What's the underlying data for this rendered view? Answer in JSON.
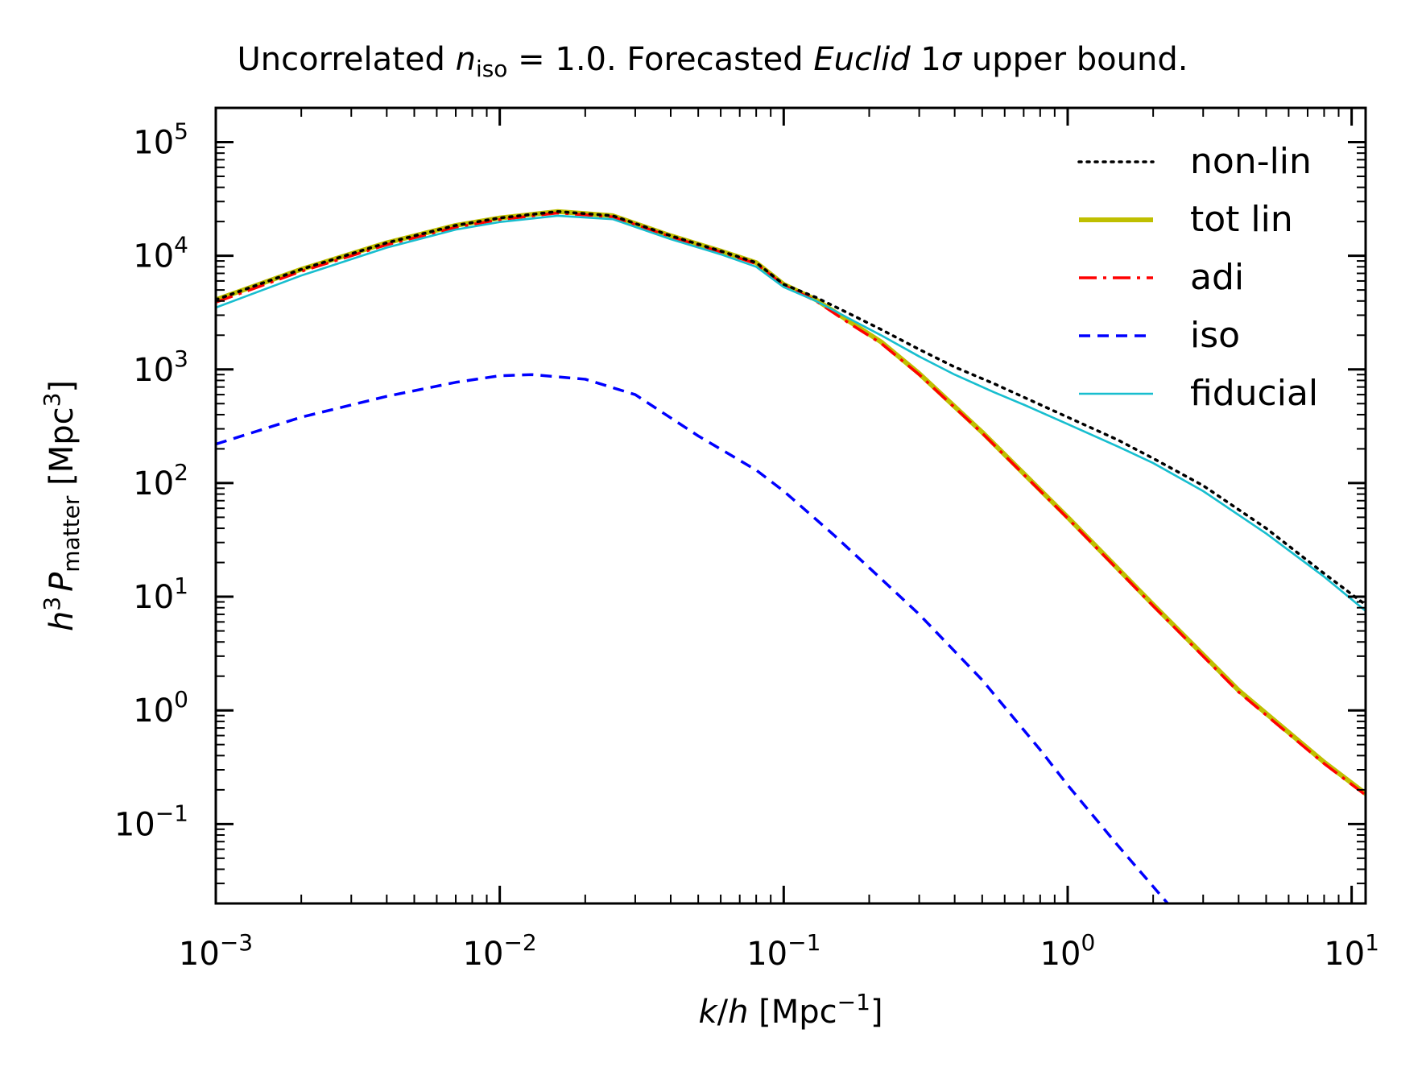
{
  "chart_data": {
    "type": "line",
    "title": {
      "pre": "Uncorrelated ",
      "var": "n",
      "sub": "iso",
      "mid": " = 1.0. Forecasted ",
      "italic": "Euclid",
      "post1": " 1",
      "sigma": "σ",
      "post2": " upper bound."
    },
    "xlabel": {
      "k": "k",
      "slash": "/",
      "h": "h",
      "unit": " [Mpc",
      "exp": "−1",
      "close": "]"
    },
    "ylabel": {
      "h": "h",
      "hexp": "3",
      "P": "P",
      "sub": "matter",
      "unit": " [Mpc",
      "exp": "3",
      "close": "]"
    },
    "xscale": "log",
    "yscale": "log",
    "xlim": [
      0.001,
      11.2
    ],
    "ylim": [
      0.02,
      200000
    ],
    "xticks": [
      {
        "value": 0.001,
        "base": "10",
        "exp": "−3"
      },
      {
        "value": 0.01,
        "base": "10",
        "exp": "−2"
      },
      {
        "value": 0.1,
        "base": "10",
        "exp": "−1"
      },
      {
        "value": 1,
        "base": "10",
        "exp": "0"
      },
      {
        "value": 10,
        "base": "10",
        "exp": "1"
      }
    ],
    "yticks": [
      {
        "value": 0.1,
        "base": "10",
        "exp": "−1"
      },
      {
        "value": 1,
        "base": "10",
        "exp": "0"
      },
      {
        "value": 10,
        "base": "10",
        "exp": "1"
      },
      {
        "value": 100,
        "base": "10",
        "exp": "2"
      },
      {
        "value": 1000,
        "base": "10",
        "exp": "3"
      },
      {
        "value": 10000,
        "base": "10",
        "exp": "4"
      },
      {
        "value": 100000,
        "base": "10",
        "exp": "5"
      }
    ],
    "grid": false,
    "legend_position": "top-right",
    "series": [
      {
        "name": "non-lin",
        "color": "#000000",
        "style": "dotted",
        "x": [
          0.001,
          0.002,
          0.004,
          0.007,
          0.01,
          0.016,
          0.025,
          0.04,
          0.06,
          0.08,
          0.1,
          0.13,
          0.17,
          0.22,
          0.3,
          0.4,
          0.55,
          0.7,
          1.0,
          1.5,
          2.0,
          3.0,
          5.0,
          8.0,
          11.2
        ],
        "y": [
          4100,
          7600,
          13000,
          18500,
          21500,
          24500,
          22500,
          15000,
          11000,
          8700,
          5600,
          4300,
          3100,
          2250,
          1500,
          1050,
          750,
          570,
          380,
          240,
          165,
          95,
          40,
          16,
          8.5
        ]
      },
      {
        "name": "tot lin",
        "color": "#bfbf00",
        "style": "solid-thick",
        "x": [
          0.001,
          0.002,
          0.004,
          0.007,
          0.01,
          0.016,
          0.025,
          0.04,
          0.06,
          0.08,
          0.1,
          0.13,
          0.17,
          0.22,
          0.3,
          0.5,
          1.0,
          2.0,
          4.0,
          8.0,
          11.2
        ],
        "y": [
          4100,
          7600,
          13000,
          18500,
          21500,
          24500,
          22500,
          15000,
          11000,
          8700,
          5600,
          4100,
          2650,
          1750,
          920,
          280,
          50,
          8.5,
          1.5,
          0.35,
          0.185
        ]
      },
      {
        "name": "adi",
        "color": "#ff0000",
        "style": "dashdot",
        "x": [
          0.001,
          0.002,
          0.004,
          0.007,
          0.01,
          0.016,
          0.025,
          0.04,
          0.06,
          0.08,
          0.1,
          0.13,
          0.17,
          0.22,
          0.3,
          0.5,
          1.0,
          2.0,
          4.0,
          8.0,
          11.2
        ],
        "y": [
          3900,
          7300,
          12500,
          17800,
          20800,
          23800,
          22000,
          14700,
          10800,
          8500,
          5500,
          4000,
          2550,
          1700,
          900,
          275,
          49,
          8.3,
          1.45,
          0.34,
          0.18
        ]
      },
      {
        "name": "iso",
        "color": "#0000ff",
        "style": "dashed",
        "x": [
          0.001,
          0.002,
          0.004,
          0.007,
          0.01,
          0.013,
          0.02,
          0.03,
          0.05,
          0.08,
          0.1,
          0.15,
          0.2,
          0.3,
          0.5,
          0.8,
          1.0,
          1.5,
          2.25
        ],
        "y": [
          220,
          380,
          580,
          770,
          880,
          900,
          820,
          600,
          260,
          130,
          85,
          35,
          18,
          7.0,
          1.85,
          0.45,
          0.22,
          0.065,
          0.02
        ]
      },
      {
        "name": "fiducial",
        "color": "#17becf",
        "style": "solid",
        "x": [
          0.001,
          0.002,
          0.004,
          0.007,
          0.01,
          0.016,
          0.025,
          0.04,
          0.06,
          0.08,
          0.1,
          0.13,
          0.17,
          0.22,
          0.3,
          0.4,
          0.55,
          0.7,
          1.0,
          1.5,
          2.0,
          3.0,
          5.0,
          8.0,
          11.2
        ],
        "y": [
          3500,
          6700,
          11800,
          17000,
          19800,
          22500,
          21000,
          14000,
          10300,
          8000,
          5300,
          4000,
          2800,
          2000,
          1300,
          900,
          630,
          490,
          330,
          210,
          150,
          85,
          36,
          15,
          7.5
        ]
      }
    ]
  }
}
